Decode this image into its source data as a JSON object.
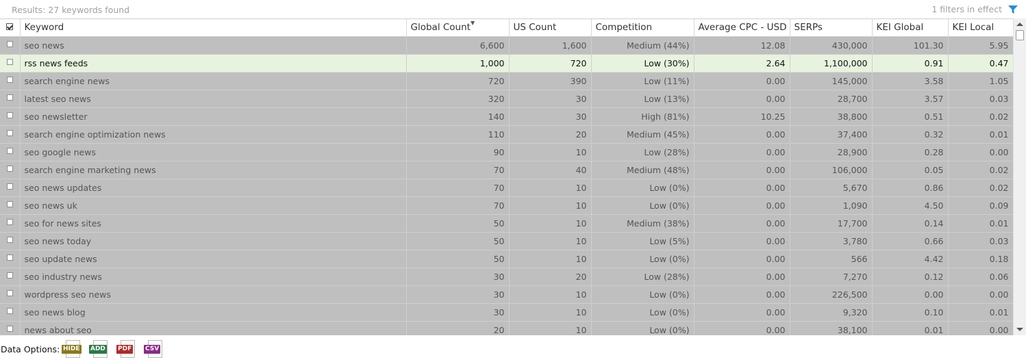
{
  "header": {
    "results_text": "Results: 27 keywords found",
    "filters_text": "1 filters in effect",
    "filter_icon": "funnel-icon"
  },
  "table": {
    "columns": [
      "Keyword",
      "Global Count",
      "US Count",
      "Competition",
      "Average CPC - USD",
      "SERPs",
      "KEI Global",
      "KEI Local"
    ],
    "sorted_column": "Global Count",
    "selected_row": 1,
    "rows": [
      [
        "seo news",
        "6,600",
        "1,600",
        "Medium (44%)",
        "12.08",
        "430,000",
        "101.30",
        "5.95"
      ],
      [
        "rss news feeds",
        "1,000",
        "720",
        "Low (30%)",
        "2.64",
        "1,100,000",
        "0.91",
        "0.47"
      ],
      [
        "search engine news",
        "720",
        "390",
        "Low (11%)",
        "0.00",
        "145,000",
        "3.58",
        "1.05"
      ],
      [
        "latest seo news",
        "320",
        "30",
        "Low (13%)",
        "0.00",
        "28,700",
        "3.57",
        "0.03"
      ],
      [
        "seo newsletter",
        "140",
        "30",
        "High (81%)",
        "10.25",
        "38,800",
        "0.51",
        "0.02"
      ],
      [
        "search engine optimization news",
        "110",
        "20",
        "Medium (45%)",
        "0.00",
        "37,400",
        "0.32",
        "0.01"
      ],
      [
        "seo google news",
        "90",
        "10",
        "Low (28%)",
        "0.00",
        "28,900",
        "0.28",
        "0.00"
      ],
      [
        "search engine marketing news",
        "70",
        "40",
        "Medium (48%)",
        "0.00",
        "106,000",
        "0.05",
        "0.02"
      ],
      [
        "seo news updates",
        "70",
        "10",
        "Low (0%)",
        "0.00",
        "5,670",
        "0.86",
        "0.02"
      ],
      [
        "seo news uk",
        "70",
        "10",
        "Low (0%)",
        "0.00",
        "1,090",
        "4.50",
        "0.09"
      ],
      [
        "seo for news sites",
        "50",
        "10",
        "Medium (38%)",
        "0.00",
        "17,700",
        "0.14",
        "0.01"
      ],
      [
        "seo news today",
        "50",
        "10",
        "Low (5%)",
        "0.00",
        "3,780",
        "0.66",
        "0.03"
      ],
      [
        "seo update news",
        "50",
        "10",
        "Low (0%)",
        "0.00",
        "566",
        "4.42",
        "0.18"
      ],
      [
        "seo industry news",
        "30",
        "20",
        "Low (28%)",
        "0.00",
        "7,270",
        "0.12",
        "0.06"
      ],
      [
        "wordpress seo news",
        "30",
        "10",
        "Low (0%)",
        "0.00",
        "226,500",
        "0.00",
        "0.00"
      ],
      [
        "seo news blog",
        "30",
        "10",
        "Low (0%)",
        "0.00",
        "9,320",
        "0.10",
        "0.01"
      ],
      [
        "news about seo",
        "20",
        "10",
        "Low (0%)",
        "0.00",
        "38,100",
        "0.01",
        "0.00"
      ]
    ]
  },
  "footer": {
    "label": "Data Options:",
    "buttons": [
      {
        "label": "HIDE",
        "color": "#8a7a1a"
      },
      {
        "label": "ADD",
        "color": "#2a7a4a"
      },
      {
        "label": "PDF",
        "color": "#b02a2a"
      },
      {
        "label": "CSV",
        "color": "#8a2a8a"
      }
    ]
  },
  "colors": {
    "row_background": "#bfbfbf",
    "selected_row_background": "#e8f3df",
    "accent": "#2a8ad8"
  }
}
